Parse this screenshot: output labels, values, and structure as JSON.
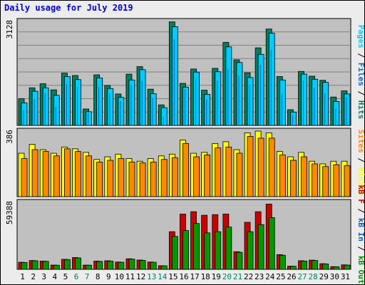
{
  "title": "Daily usage for July 2019",
  "colors": {
    "pages": "#00ccff",
    "files": "#008060",
    "hits": "#008060",
    "visits": "#ffff00",
    "sites": "#ff8800",
    "kbin": "#0066cc",
    "kbout": "#009900",
    "kbf": "#cc0000",
    "weekday": "#000000",
    "weekend": "#008060",
    "panel_bg": "#c0c0c0",
    "grid": "#808080"
  },
  "right_labels": {
    "top": [
      {
        "text": "Pages",
        "color": "#00ccff"
      },
      {
        "text": " / ",
        "color": "#000000"
      },
      {
        "text": "Files",
        "color": "#0066cc"
      },
      {
        "text": " / ",
        "color": "#000000"
      },
      {
        "text": "Hits",
        "color": "#008060"
      }
    ],
    "middle": [
      {
        "text": "Sites",
        "color": "#ff8800"
      },
      {
        "text": " / ",
        "color": "#000000"
      },
      {
        "text": "Visits",
        "color": "#ffff00"
      }
    ],
    "bottom": [
      {
        "text": "kB F",
        "color": "#cc0000"
      },
      {
        "text": " / ",
        "color": "#000000"
      },
      {
        "text": "kB In",
        "color": "#0066cc"
      },
      {
        "text": " / ",
        "color": "#000000"
      },
      {
        "text": "kB Out",
        "color": "#009900"
      }
    ]
  },
  "chart_data": [
    {
      "type": "bar",
      "panel": "hits-files-pages",
      "ymax_label": "3128",
      "ylim": [
        0,
        3128
      ],
      "grid": true,
      "categories": [
        "1",
        "2",
        "3",
        "4",
        "5",
        "6",
        "7",
        "8",
        "9",
        "10",
        "11",
        "12",
        "13",
        "14",
        "15",
        "16",
        "17",
        "18",
        "19",
        "20",
        "21",
        "22",
        "23",
        "24",
        "25",
        "26",
        "27",
        "28",
        "29",
        "30",
        "31"
      ],
      "weekend_days": [
        "6",
        "7",
        "13",
        "14",
        "20",
        "21",
        "27",
        "28"
      ],
      "series": [
        {
          "name": "Hits",
          "values": [
            780,
            1100,
            1220,
            1040,
            1530,
            1460,
            480,
            1480,
            1170,
            920,
            1500,
            1720,
            1060,
            600,
            3030,
            1230,
            1650,
            1030,
            1670,
            2430,
            1920,
            1540,
            2270,
            2820,
            1430,
            460,
            1580,
            1440,
            1320,
            830,
            1010
          ]
        },
        {
          "name": "Files",
          "values": [
            460,
            770,
            950,
            540,
            1210,
            1130,
            350,
            1130,
            930,
            710,
            1180,
            1300,
            800,
            260,
            2520,
            1060,
            1370,
            760,
            1310,
            1640,
            1450,
            1200,
            1770,
            2220,
            930,
            310,
            1320,
            1090,
            940,
            490,
            830
          ]
        },
        {
          "name": "Pages",
          "values": [
            660,
            1000,
            1100,
            880,
            1430,
            1340,
            400,
            1390,
            1080,
            820,
            1330,
            1630,
            930,
            520,
            2890,
            1120,
            1560,
            910,
            1570,
            2300,
            1840,
            1400,
            2080,
            2700,
            1330,
            390,
            1500,
            1350,
            1260,
            700,
            920
          ]
        }
      ]
    },
    {
      "type": "bar",
      "panel": "visits-sites",
      "ymax_label": "386",
      "ylim": [
        0,
        386
      ],
      "grid": false,
      "categories": [
        "1",
        "2",
        "3",
        "4",
        "5",
        "6",
        "7",
        "8",
        "9",
        "10",
        "11",
        "12",
        "13",
        "14",
        "15",
        "16",
        "17",
        "18",
        "19",
        "20",
        "21",
        "22",
        "23",
        "24",
        "25",
        "26",
        "27",
        "28",
        "29",
        "30",
        "31"
      ],
      "series": [
        {
          "name": "Visits",
          "values": [
            245,
            295,
            265,
            245,
            280,
            270,
            250,
            210,
            225,
            240,
            215,
            200,
            215,
            230,
            240,
            320,
            245,
            250,
            300,
            310,
            265,
            360,
            370,
            360,
            255,
            225,
            250,
            200,
            185,
            200,
            200
          ]
        },
        {
          "name": "Sites",
          "values": [
            215,
            265,
            255,
            230,
            270,
            255,
            230,
            195,
            205,
            215,
            195,
            190,
            195,
            210,
            220,
            300,
            225,
            235,
            275,
            280,
            245,
            340,
            330,
            330,
            235,
            205,
            225,
            185,
            170,
            180,
            175
          ]
        }
      ]
    },
    {
      "type": "bar",
      "panel": "kbytes",
      "ymax_label": "59388",
      "ylim": [
        0,
        59388
      ],
      "grid": false,
      "categories": [
        "1",
        "2",
        "3",
        "4",
        "5",
        "6",
        "7",
        "8",
        "9",
        "10",
        "11",
        "12",
        "13",
        "14",
        "15",
        "16",
        "17",
        "18",
        "19",
        "20",
        "21",
        "22",
        "23",
        "24",
        "25",
        "26",
        "27",
        "28",
        "29",
        "30",
        "31"
      ],
      "series": [
        {
          "name": "kB F",
          "values": [
            6000,
            7500,
            7000,
            3600,
            8500,
            10000,
            3600,
            7000,
            7300,
            6200,
            9000,
            7900,
            6200,
            3100,
            32000,
            47000,
            49000,
            46000,
            46500,
            47000,
            15000,
            40000,
            49000,
            55500,
            12500,
            2700,
            7300,
            7800,
            4800,
            2300,
            3800
          ]
        },
        {
          "name": "kB In",
          "values": [
            0,
            0,
            0,
            0,
            0,
            0,
            0,
            0,
            0,
            0,
            0,
            0,
            0,
            0,
            0,
            0,
            0,
            0,
            0,
            0,
            0,
            0,
            0,
            0,
            0,
            0,
            0,
            0,
            0,
            0,
            0
          ]
        },
        {
          "name": "kB Out",
          "values": [
            5800,
            7300,
            6800,
            3500,
            8300,
            9700,
            3500,
            6700,
            7000,
            6000,
            8700,
            7600,
            6000,
            3000,
            28000,
            33000,
            39000,
            31000,
            32000,
            36000,
            14500,
            32000,
            38000,
            44000,
            12000,
            2600,
            7000,
            7500,
            4600,
            2200,
            3600
          ]
        }
      ]
    }
  ]
}
